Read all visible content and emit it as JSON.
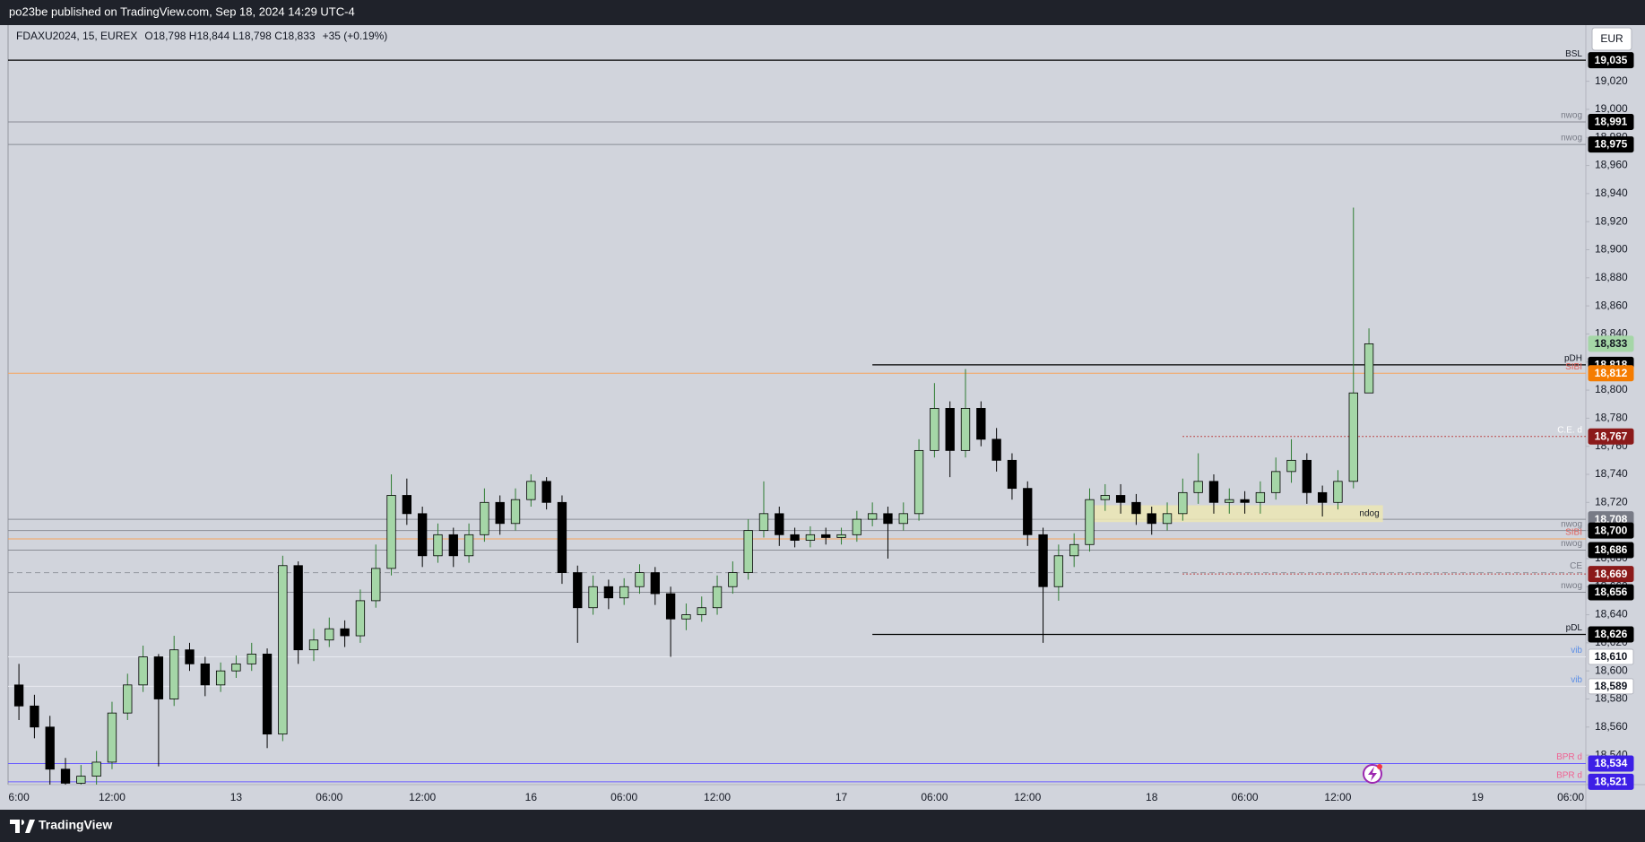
{
  "header": "po23be published on TradingView.com, Sep 18, 2024 14:29 UTC-4",
  "footer": "TradingView",
  "currency": "EUR",
  "chart_data": {
    "type": "candlestick",
    "symbol": "FDAXU2024, 15, EUREX",
    "ohlc": "O18,798  H18,844  L18,798  C18,833",
    "change": "+35 (+0.19%)",
    "up_color": "#a5d6a7",
    "down_color": "#000000",
    "grid": false,
    "categories": [
      "6:00",
      null,
      null,
      null,
      null,
      null,
      "12:00",
      null,
      null,
      null,
      null,
      null,
      null,
      null,
      "13",
      null,
      null,
      null,
      null,
      null,
      "06:00",
      null,
      null,
      null,
      null,
      null,
      "12:00",
      null,
      null,
      null,
      null,
      null,
      null,
      "16",
      null,
      null,
      null,
      null,
      null,
      "06:00",
      null,
      null,
      null,
      null,
      null,
      "12:00",
      null,
      null,
      null,
      null,
      null,
      null,
      null,
      "17",
      null,
      null,
      null,
      null,
      null,
      "06:00",
      null,
      null,
      null,
      null,
      null,
      "12:00",
      null,
      null,
      null,
      null,
      null,
      null,
      null,
      "18",
      null,
      null,
      null,
      null,
      null,
      "06:00",
      null,
      null,
      null,
      null,
      null,
      "12:00",
      null,
      null,
      null,
      null,
      null,
      null,
      null,
      null,
      "19",
      null,
      null,
      null,
      null,
      null,
      "06:00"
    ],
    "open": [
      18590,
      18575,
      18560,
      18530,
      18520,
      18525,
      18535,
      18570,
      18590,
      18610,
      18580,
      18615,
      18605,
      18590,
      18600,
      18605,
      18612,
      18555,
      18675,
      18615,
      18622,
      18630,
      18625,
      18650,
      18673,
      18725,
      18712,
      18682,
      18697,
      18682,
      18697,
      18720,
      18705,
      18722,
      18735,
      18720,
      18670,
      18645,
      18660,
      18652,
      18660,
      18670,
      18655,
      18637,
      18640,
      18645,
      18660,
      18670,
      18700,
      18712,
      18697,
      18693,
      18697,
      18695,
      18697,
      18708,
      18712,
      18705,
      18712,
      18757,
      18787,
      18757,
      18787,
      18765,
      18750,
      18730,
      18697,
      18660,
      18682,
      18690,
      18722,
      18725,
      18720,
      18712,
      18705,
      18712,
      18727,
      18735,
      18720,
      18722,
      18720,
      18727,
      18742,
      18750,
      18727,
      18720,
      18735,
      18798,
      null,
      null,
      null,
      null,
      null,
      null,
      null,
      null,
      null,
      null,
      null,
      null,
      null
    ],
    "high": [
      18605,
      18583,
      18568,
      18538,
      18533,
      18543,
      18578,
      18598,
      18618,
      18612,
      18625,
      18620,
      18610,
      18606,
      18611,
      18620,
      18616,
      18682,
      18678,
      18630,
      18638,
      18636,
      18658,
      18690,
      18740,
      18737,
      18717,
      18705,
      18702,
      18705,
      18730,
      18725,
      18730,
      18740,
      18738,
      18725,
      18675,
      18668,
      18665,
      18666,
      18676,
      18674,
      18660,
      18648,
      18653,
      18668,
      18678,
      18708,
      18735,
      18717,
      18702,
      18703,
      18702,
      18702,
      18714,
      18720,
      18717,
      18720,
      18765,
      18805,
      18792,
      18815,
      18792,
      18773,
      18755,
      18735,
      18702,
      18690,
      18698,
      18730,
      18733,
      18733,
      18726,
      18717,
      18720,
      18737,
      18755,
      18740,
      18730,
      18728,
      18735,
      18752,
      18765,
      18755,
      18732,
      18743,
      18930,
      18844,
      null,
      null,
      null,
      null,
      null,
      null,
      null,
      null,
      null,
      null,
      null,
      null,
      null
    ],
    "low": [
      18565,
      18552,
      18515,
      18510,
      18505,
      18517,
      18530,
      18565,
      18585,
      18532,
      18575,
      18600,
      18582,
      18585,
      18595,
      18600,
      18545,
      18550,
      18605,
      18607,
      18617,
      18617,
      18620,
      18645,
      18668,
      18704,
      18674,
      18677,
      18674,
      18677,
      18692,
      18697,
      18700,
      18717,
      18715,
      18662,
      18620,
      18640,
      18644,
      18647,
      18655,
      18647,
      18610,
      18629,
      18635,
      18640,
      18655,
      18665,
      18695,
      18689,
      18688,
      18688,
      18690,
      18690,
      18692,
      18703,
      18680,
      18700,
      18707,
      18752,
      18738,
      18752,
      18760,
      18742,
      18722,
      18689,
      18620,
      18650,
      18674,
      18685,
      18714,
      18712,
      18704,
      18697,
      18700,
      18707,
      18719,
      18712,
      18712,
      18712,
      18712,
      18722,
      18734,
      18719,
      18710,
      18715,
      18730,
      18798,
      null,
      null,
      null,
      null,
      null,
      null,
      null,
      null,
      null,
      null,
      null,
      null,
      null
    ],
    "close": [
      18575,
      18560,
      18530,
      18520,
      18525,
      18535,
      18570,
      18590,
      18610,
      18580,
      18615,
      18605,
      18590,
      18600,
      18605,
      18612,
      18555,
      18675,
      18615,
      18622,
      18630,
      18625,
      18650,
      18673,
      18725,
      18712,
      18682,
      18697,
      18682,
      18697,
      18720,
      18705,
      18722,
      18735,
      18720,
      18670,
      18645,
      18660,
      18652,
      18660,
      18670,
      18655,
      18637,
      18640,
      18645,
      18660,
      18670,
      18700,
      18712,
      18697,
      18693,
      18697,
      18695,
      18697,
      18708,
      18712,
      18705,
      18712,
      18757,
      18787,
      18757,
      18787,
      18765,
      18750,
      18730,
      18697,
      18660,
      18682,
      18690,
      18722,
      18725,
      18720,
      18712,
      18705,
      18712,
      18727,
      18735,
      18720,
      18722,
      18720,
      18727,
      18742,
      18750,
      18727,
      18720,
      18735,
      18798,
      18833,
      null,
      null,
      null,
      null,
      null,
      null,
      null,
      null,
      null,
      null,
      null,
      null,
      null
    ],
    "ylim": [
      18519,
      19060
    ],
    "yticks": [
      {
        "value": 18540,
        "label": "18,540"
      },
      {
        "value": 18560,
        "label": "18,560"
      },
      {
        "value": 18580,
        "label": "18,580"
      },
      {
        "value": 18600,
        "label": "18,600"
      },
      {
        "value": 18620,
        "label": "18,620"
      },
      {
        "value": 18640,
        "label": "18,640"
      },
      {
        "value": 18660,
        "label": "18,660"
      },
      {
        "value": 18680,
        "label": "18,680"
      },
      {
        "value": 18700,
        "label": "18,700"
      },
      {
        "value": 18720,
        "label": "18,720"
      },
      {
        "value": 18740,
        "label": "18,740"
      },
      {
        "value": 18760,
        "label": "18,760"
      },
      {
        "value": 18780,
        "label": "18,780"
      },
      {
        "value": 18800,
        "label": "18,800"
      },
      {
        "value": 18820,
        "label": "18,820"
      },
      {
        "value": 18840,
        "label": "18,840"
      },
      {
        "value": 18860,
        "label": "18,860"
      },
      {
        "value": 18880,
        "label": "18,880"
      },
      {
        "value": 18900,
        "label": "18,900"
      },
      {
        "value": 18920,
        "label": "18,920"
      },
      {
        "value": 18940,
        "label": "18,940"
      },
      {
        "value": 18960,
        "label": "18,960"
      },
      {
        "value": 18980,
        "label": "18,980"
      },
      {
        "value": 19000,
        "label": "19,000"
      },
      {
        "value": 19020,
        "label": "19,020"
      }
    ],
    "zones": [
      {
        "name": "ndog",
        "low": 18706,
        "high": 18718,
        "color": "#ece6b4"
      }
    ],
    "levels": [
      {
        "name": "BSL",
        "value": 19035,
        "value_label": "19,035",
        "color": "#000000",
        "name_color": "#131722",
        "style": "solid",
        "box_color": "#000000"
      },
      {
        "name": "nwog",
        "value": 18991,
        "value_label": "18,991",
        "color": "#8a8d96",
        "name_color": "#787b86",
        "style": "solid",
        "box_color": "#000000"
      },
      {
        "name": "nwog",
        "value": 18975,
        "value_label": "18,975",
        "color": "#8a8d96",
        "name_color": "#787b86",
        "style": "solid",
        "box_color": "#000000"
      },
      {
        "value": 18833,
        "value_label": "18,833",
        "style": "none",
        "box_color": "#a5d6a7"
      },
      {
        "name": "pDH",
        "value": 18818,
        "value_label": "18,818",
        "color": "#000000",
        "name_color": "#131722",
        "style": "solid",
        "box_color": "#000000"
      },
      {
        "name": "SIBI",
        "value": 18812,
        "value_label": "18,812",
        "color": "#f7a35c",
        "name_color": "#e0605a",
        "style": "solid",
        "box_color": "#f57c00"
      },
      {
        "name": "C.E. d",
        "value": 18767,
        "value_label": "18,767",
        "color": "#b71c1c",
        "name_color": "#ffffff",
        "style": "dotted",
        "box_color": "#8b1a1a"
      },
      {
        "value": 18708,
        "value_label": "18,708",
        "color": "#8a8d96",
        "style": "solid",
        "box_color": "#787b86"
      },
      {
        "name": "nwog",
        "value": 18700,
        "value_label": "18,700",
        "color": "#8a8d96",
        "name_color": "#787b86",
        "style": "solid",
        "box_color": "#000000"
      },
      {
        "name": "SIBI",
        "value": 18694,
        "color": "#f7a35c",
        "name_color": "#e0605a",
        "style": "solid"
      },
      {
        "name": "nwog",
        "value": 18686,
        "value_label": "18,686",
        "color": "#8a8d96",
        "name_color": "#787b86",
        "style": "solid",
        "box_color": "#000000"
      },
      {
        "name": "CE",
        "value": 18670,
        "color": "#9598a1",
        "name_color": "#787b86",
        "style": "dashed"
      },
      {
        "value": 18669,
        "value_label": "18,669",
        "color": "#b71c1c",
        "style": "dotted",
        "box_color": "#8b1a1a"
      },
      {
        "name": "nwog",
        "value": 18656,
        "value_label": "18,656",
        "color": "#8a8d96",
        "name_color": "#787b86",
        "style": "solid",
        "box_color": "#000000"
      },
      {
        "name": "pDL",
        "value": 18626,
        "value_label": "18,626",
        "color": "#000000",
        "name_color": "#131722",
        "style": "solid",
        "box_color": "#000000"
      },
      {
        "name": "vib",
        "value": 18610,
        "value_label": "18,610",
        "color": "#e8eaf0",
        "name_color": "#5c8ee6",
        "style": "solid",
        "box_color": "#ffffff"
      },
      {
        "name": "vib",
        "value": 18589,
        "value_label": "18,589",
        "color": "#e8eaf0",
        "name_color": "#5c8ee6",
        "style": "solid",
        "box_color": "#ffffff"
      },
      {
        "name": "BPR d",
        "value": 18534,
        "value_label": "18,534",
        "color": "#6a5cff",
        "name_color": "#f06292",
        "style": "solid",
        "box_color": "#3d1fe6"
      },
      {
        "name": "BPR d",
        "value": 18521,
        "value_label": "18,521",
        "color": "#6a5cff",
        "name_color": "#f06292",
        "style": "solid",
        "box_color": "#3d1fe6"
      }
    ]
  }
}
